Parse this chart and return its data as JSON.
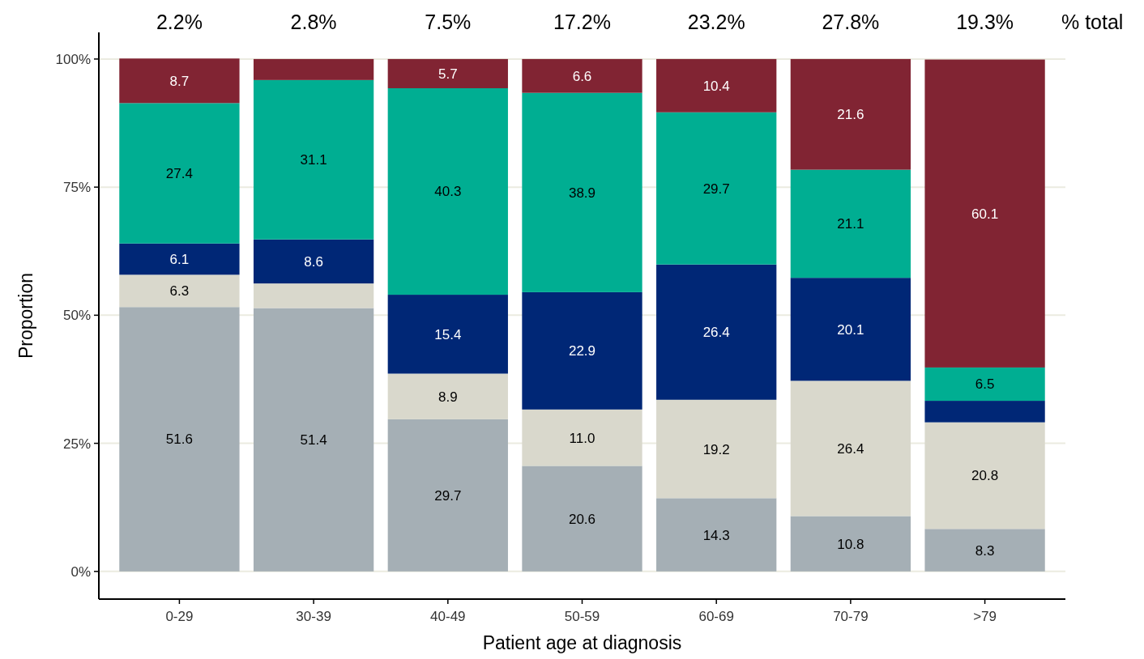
{
  "chart_data": {
    "type": "bar",
    "stacked": true,
    "xlabel": "Patient age at diagnosis",
    "ylabel": "Proportion",
    "categories": [
      "0-29",
      "30-39",
      "40-49",
      "50-59",
      "60-69",
      "70-79",
      ">79"
    ],
    "series": [
      {
        "color": "#a5afb5",
        "values": [
          51.6,
          51.4,
          29.7,
          20.6,
          14.3,
          10.8,
          8.3
        ],
        "value_labels": [
          "51.6",
          "51.4",
          "29.7",
          "20.6",
          "14.3",
          "10.8",
          "8.3"
        ]
      },
      {
        "color": "#d9d8cc",
        "values": [
          6.3,
          4.8,
          8.9,
          11.0,
          19.2,
          26.4,
          20.8
        ],
        "value_labels": [
          "6.3",
          null,
          "8.9",
          "11.0",
          "19.2",
          "26.4",
          "20.8"
        ]
      },
      {
        "color": "#002776",
        "values": [
          6.1,
          8.6,
          15.4,
          22.9,
          26.4,
          20.1,
          4.2
        ],
        "value_labels": [
          "6.1",
          "8.6",
          "15.4",
          "22.9",
          "26.4",
          "20.1",
          null
        ]
      },
      {
        "color": "#00ae92",
        "values": [
          27.4,
          31.1,
          40.3,
          38.9,
          29.7,
          21.1,
          6.5
        ],
        "value_labels": [
          "27.4",
          "31.1",
          "40.3",
          "38.9",
          "29.7",
          "21.1",
          "6.5"
        ]
      },
      {
        "color": "#812433",
        "values": [
          8.7,
          4.1,
          5.7,
          6.6,
          10.4,
          21.6,
          60.1
        ],
        "value_labels": [
          "8.7",
          null,
          "5.7",
          "6.6",
          "10.4",
          "21.6",
          "60.1"
        ]
      }
    ],
    "ylim": [
      -5.4,
      105.2
    ],
    "yticks": [
      {
        "value": 0,
        "label": "0%"
      },
      {
        "value": 25,
        "label": "25%"
      },
      {
        "value": 50,
        "label": "50%"
      },
      {
        "value": 75,
        "label": "75%"
      },
      {
        "value": 100,
        "label": "100%"
      }
    ],
    "grid": "y",
    "annotations": [
      "2.2%",
      "2.8%",
      "7.5%",
      "17.2%",
      "23.2%",
      "27.8%",
      "19.3%",
      "% total"
    ]
  }
}
